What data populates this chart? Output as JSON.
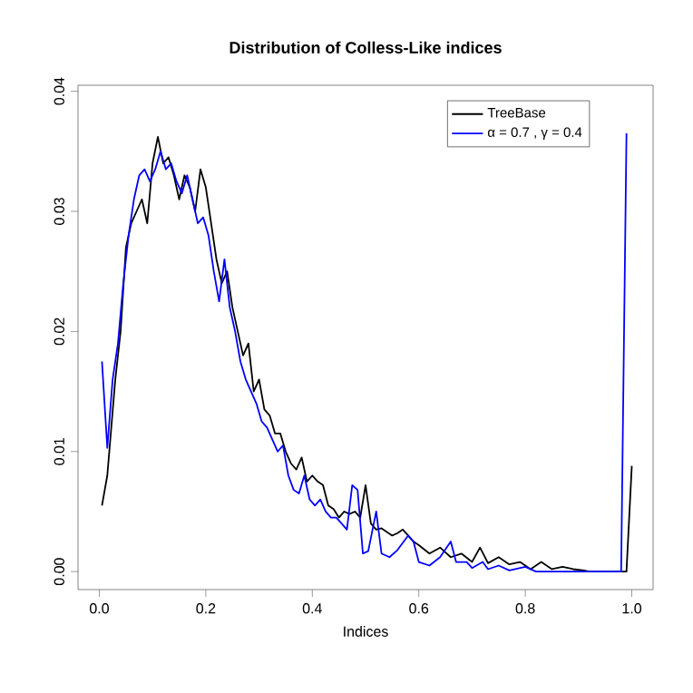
{
  "chart_data": {
    "type": "line",
    "title": "Distribution of Colless-Like indices",
    "xlabel": "Indices",
    "xlim": [
      -0.04,
      1.04
    ],
    "ylim": [
      -0.0015,
      0.0405
    ],
    "xticks": [
      {
        "value": 0,
        "label": "0.0"
      },
      {
        "value": 0.2,
        "label": "0.2"
      },
      {
        "value": 0.4,
        "label": "0.4"
      },
      {
        "value": 0.6,
        "label": "0.6"
      },
      {
        "value": 0.8,
        "label": "0.8"
      },
      {
        "value": 1,
        "label": "1.0"
      }
    ],
    "yticks": [
      {
        "value": 0,
        "label": "0.00"
      },
      {
        "value": 0.01,
        "label": "0.01"
      },
      {
        "value": 0.02,
        "label": "0.02"
      },
      {
        "value": 0.03,
        "label": "0.03"
      },
      {
        "value": 0.04,
        "label": "0.04"
      }
    ],
    "grid": false,
    "legend": "top right",
    "line_style": "solid",
    "series": [
      {
        "name": "TreeBase",
        "color": "#000000",
        "x": [
          0.005,
          0.015,
          0.03,
          0.04,
          0.05,
          0.06,
          0.07,
          0.08,
          0.09,
          0.1,
          0.11,
          0.12,
          0.13,
          0.14,
          0.15,
          0.16,
          0.17,
          0.18,
          0.19,
          0.2,
          0.21,
          0.22,
          0.23,
          0.24,
          0.25,
          0.26,
          0.27,
          0.28,
          0.29,
          0.3,
          0.31,
          0.32,
          0.33,
          0.34,
          0.35,
          0.36,
          0.37,
          0.38,
          0.39,
          0.4,
          0.41,
          0.42,
          0.43,
          0.44,
          0.45,
          0.46,
          0.47,
          0.48,
          0.49,
          0.5,
          0.51,
          0.52,
          0.53,
          0.54,
          0.55,
          0.56,
          0.57,
          0.58,
          0.59,
          0.6,
          0.62,
          0.64,
          0.66,
          0.68,
          0.7,
          0.715,
          0.73,
          0.75,
          0.77,
          0.79,
          0.81,
          0.83,
          0.85,
          0.87,
          0.89,
          0.91,
          0.92,
          0.99,
          1.0
        ],
        "values": [
          0.0055,
          0.008,
          0.016,
          0.02,
          0.027,
          0.029,
          0.03,
          0.031,
          0.029,
          0.034,
          0.0362,
          0.034,
          0.0345,
          0.033,
          0.031,
          0.033,
          0.032,
          0.03,
          0.0335,
          0.032,
          0.029,
          0.026,
          0.024,
          0.025,
          0.022,
          0.02,
          0.018,
          0.019,
          0.015,
          0.016,
          0.0135,
          0.013,
          0.0115,
          0.0115,
          0.01,
          0.009,
          0.0085,
          0.0095,
          0.0075,
          0.008,
          0.0075,
          0.0072,
          0.0055,
          0.0052,
          0.0045,
          0.005,
          0.0048,
          0.005,
          0.0045,
          0.0072,
          0.004,
          0.0035,
          0.0036,
          0.0033,
          0.003,
          0.0032,
          0.0035,
          0.003,
          0.0025,
          0.0022,
          0.0015,
          0.002,
          0.0012,
          0.0015,
          0.0008,
          0.002,
          0.0007,
          0.0012,
          0.0006,
          0.0008,
          0.0002,
          0.0008,
          0.0002,
          0.0004,
          0.0002,
          0.0001,
          0,
          0,
          0.0088
        ]
      },
      {
        "name": "α = 0.7 , γ = 0.4",
        "color": "#0000ff",
        "x": [
          0.005,
          0.015,
          0.025,
          0.035,
          0.045,
          0.055,
          0.065,
          0.075,
          0.085,
          0.095,
          0.105,
          0.115,
          0.125,
          0.135,
          0.145,
          0.155,
          0.165,
          0.175,
          0.185,
          0.195,
          0.205,
          0.215,
          0.225,
          0.235,
          0.245,
          0.255,
          0.265,
          0.275,
          0.285,
          0.295,
          0.305,
          0.315,
          0.325,
          0.335,
          0.345,
          0.355,
          0.365,
          0.375,
          0.385,
          0.395,
          0.405,
          0.415,
          0.425,
          0.435,
          0.445,
          0.455,
          0.465,
          0.475,
          0.485,
          0.495,
          0.505,
          0.52,
          0.53,
          0.545,
          0.56,
          0.58,
          0.59,
          0.6,
          0.62,
          0.64,
          0.66,
          0.67,
          0.69,
          0.7,
          0.72,
          0.73,
          0.75,
          0.77,
          0.8,
          0.82,
          0.98,
          0.99
        ],
        "values": [
          0.0175,
          0.0103,
          0.016,
          0.019,
          0.024,
          0.028,
          0.031,
          0.033,
          0.0335,
          0.0325,
          0.0335,
          0.035,
          0.0335,
          0.034,
          0.0325,
          0.0315,
          0.033,
          0.031,
          0.029,
          0.0295,
          0.028,
          0.025,
          0.0225,
          0.026,
          0.022,
          0.02,
          0.0175,
          0.016,
          0.015,
          0.014,
          0.0125,
          0.012,
          0.011,
          0.01,
          0.0105,
          0.008,
          0.0068,
          0.0065,
          0.008,
          0.006,
          0.0055,
          0.006,
          0.005,
          0.0045,
          0.0045,
          0.004,
          0.0035,
          0.0072,
          0.0068,
          0.0015,
          0.0017,
          0.005,
          0.0015,
          0.0012,
          0.0018,
          0.003,
          0.0025,
          0.0008,
          0.0005,
          0.0012,
          0.0025,
          0.0008,
          0.0008,
          0.0003,
          0.0008,
          0.0002,
          0.0005,
          0.0001,
          0.0004,
          0,
          0,
          0.0365
        ]
      }
    ]
  }
}
